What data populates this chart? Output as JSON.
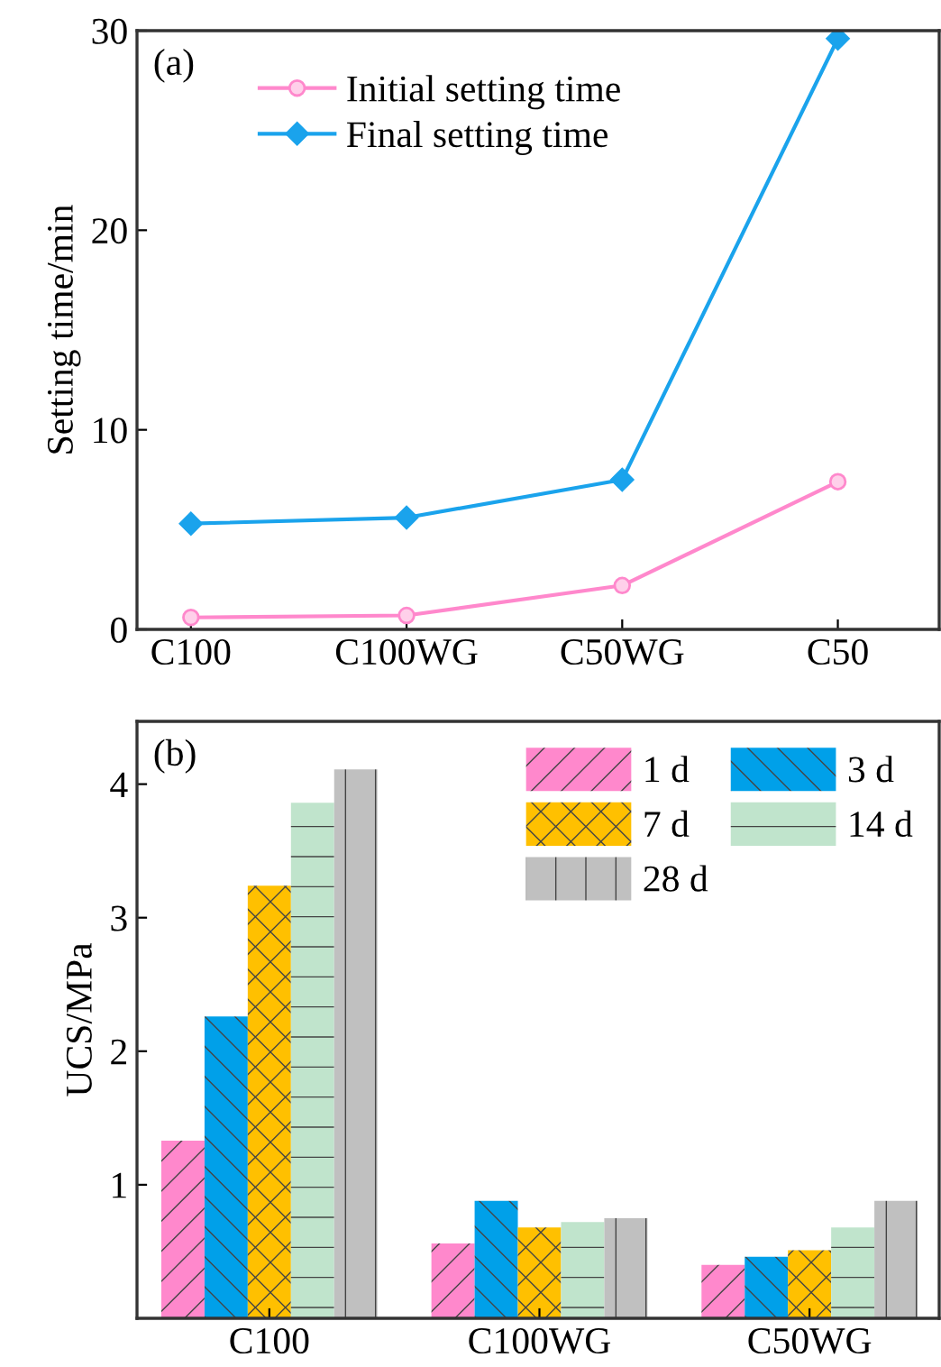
{
  "chart_data": [
    {
      "type": "line",
      "ylabel": "Setting time/min",
      "categories": [
        "C100",
        "C100WG",
        "C50WG",
        "C50"
      ],
      "ylim": [
        0,
        30
      ],
      "yticks": [
        0,
        10,
        20,
        30
      ],
      "grid": false,
      "legend": "top left",
      "annotations": [
        "(a)"
      ],
      "series": [
        {
          "name": "Initial setting time",
          "color": "#ff88cc",
          "marker": "circle",
          "values": [
            0.6,
            0.7,
            2.2,
            7.4
          ]
        },
        {
          "name": "Final setting time",
          "color": "#1aa3ec",
          "marker": "diamond",
          "values": [
            5.3,
            5.6,
            7.5,
            29.6
          ]
        }
      ]
    },
    {
      "type": "bar",
      "ylabel": "UCS/MPa",
      "categories": [
        "C100",
        "C100WG",
        "C50WG"
      ],
      "ylim": [
        0,
        4.47
      ],
      "yticks": [
        1,
        2,
        3,
        4
      ],
      "grid": false,
      "legend": "top right",
      "annotations": [
        "(b)"
      ],
      "series": [
        {
          "name": "1 d",
          "color": "#ff88cc",
          "values": [
            1.33,
            0.56,
            0.4
          ]
        },
        {
          "name": "3 d",
          "color": "#00a0e9",
          "values": [
            2.26,
            0.88,
            0.46
          ]
        },
        {
          "name": "7 d",
          "color": "#ffc000",
          "values": [
            3.24,
            0.68,
            0.51
          ]
        },
        {
          "name": "14 d",
          "color": "#c0e4cc",
          "values": [
            3.86,
            0.72,
            0.68
          ]
        },
        {
          "name": "28 d",
          "color": "#c0c0c0",
          "values": [
            4.11,
            0.75,
            0.88
          ]
        }
      ]
    }
  ]
}
